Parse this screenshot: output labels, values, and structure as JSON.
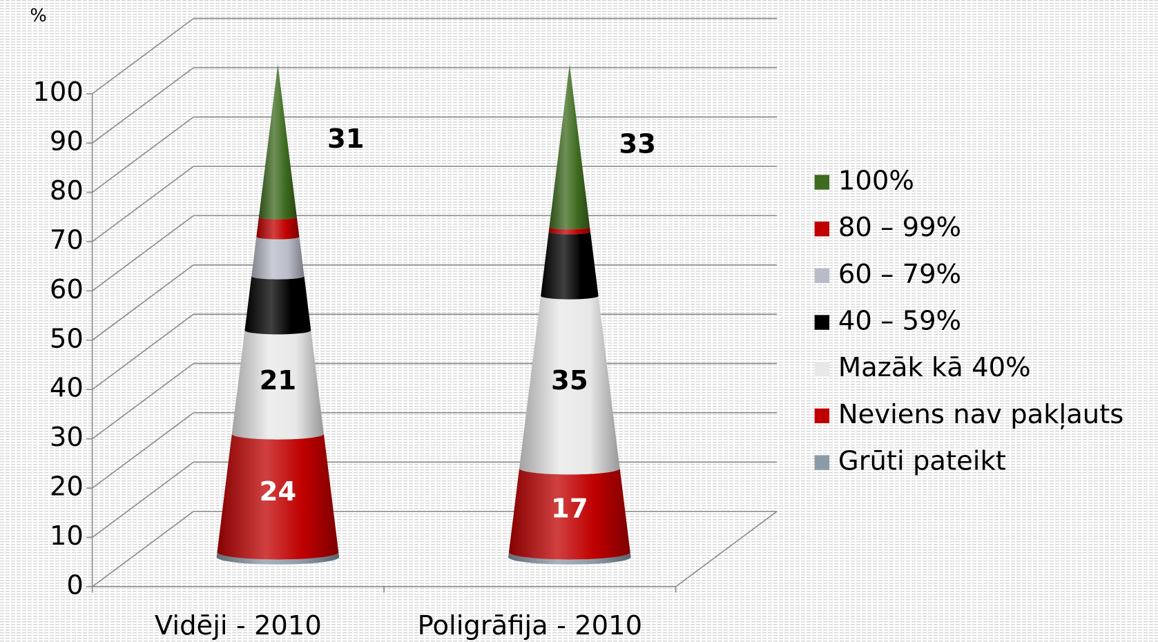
{
  "chart_data": {
    "type": "cone",
    "y_label": "%",
    "categories": [
      "Vidēji - 2010",
      "Poligrāfija - 2010"
    ],
    "ylim": [
      0,
      100
    ],
    "yticks": [
      0,
      10,
      20,
      30,
      40,
      50,
      60,
      70,
      80,
      90,
      100
    ],
    "grid": true,
    "legend": "right",
    "series": [
      {
        "name": "Grūti pateikt",
        "color": "#8c9aa8",
        "values": [
          1,
          1
        ]
      },
      {
        "name": "Neviens nav pakļauts",
        "color": "#c00000",
        "values": [
          24,
          17
        ],
        "data_labels": true,
        "label_color": "#ffffff"
      },
      {
        "name": "Mazāk kā 40%",
        "color": "#e8e8e8",
        "values": [
          21,
          35
        ],
        "data_labels": true,
        "label_color": "#000000"
      },
      {
        "name": "40 – 59%",
        "color": "#000000",
        "values": [
          11,
          13
        ]
      },
      {
        "name": "60 – 79%",
        "color": "#b8bcc8",
        "values": [
          8,
          0
        ]
      },
      {
        "name": "80 – 99%",
        "color": "#c00000",
        "values": [
          4,
          1
        ]
      },
      {
        "name": "100%",
        "color": "#3d6b1f",
        "values": [
          31,
          33
        ],
        "data_labels": true,
        "label_color": "#000000"
      }
    ]
  }
}
